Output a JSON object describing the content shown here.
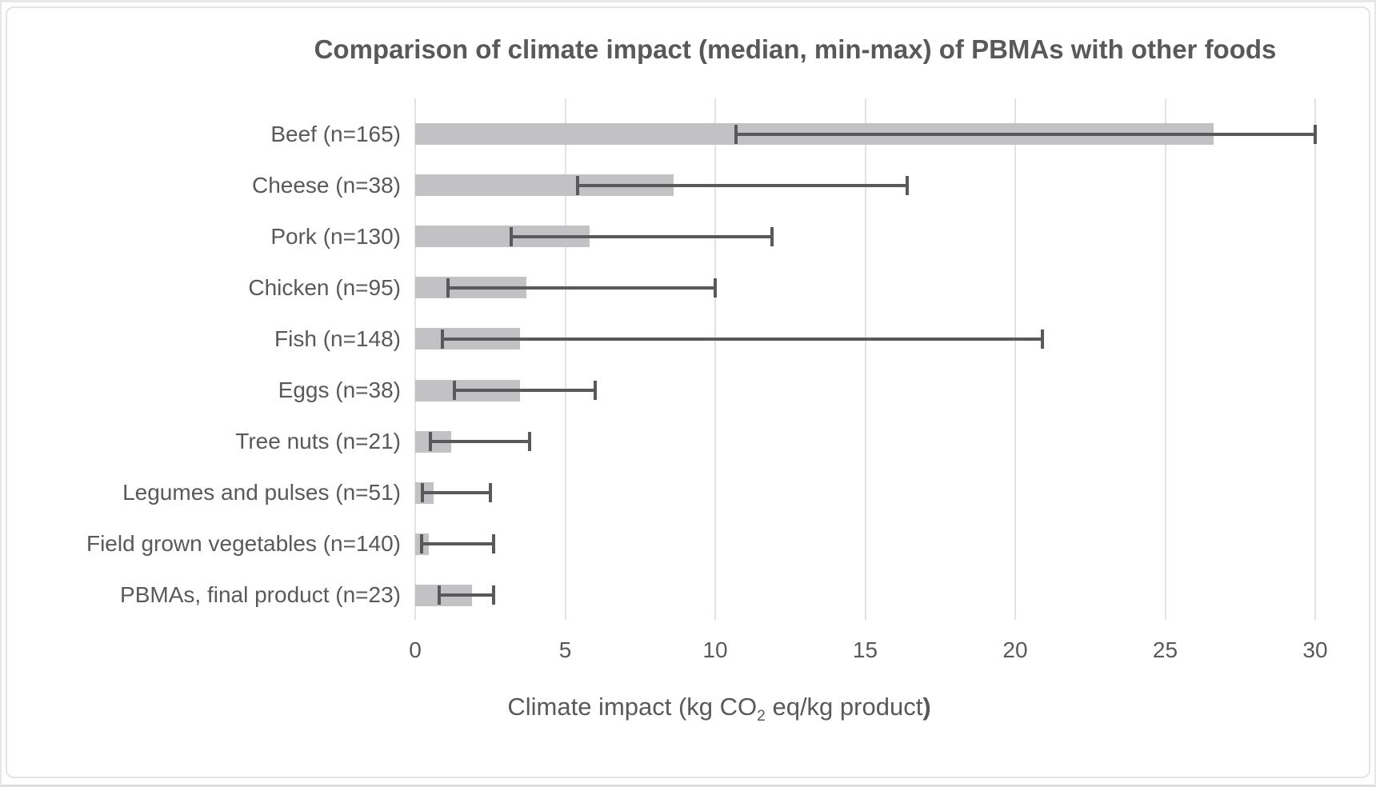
{
  "page": {
    "background": "#ffffff",
    "outer_border_color": "#e7e7e7",
    "frame_border_color": "#e3e3e3"
  },
  "chart_data": {
    "type": "bar",
    "orientation": "horizontal",
    "title": "Comparison of climate impact (median, min-max) of PBMAs with other foods",
    "xlabel": {
      "pre": "Climate impact (kg CO",
      "sub": "2",
      "post": " eq/kg product",
      "close": ")"
    },
    "xlim": [
      0,
      30
    ],
    "xticks": [
      "0",
      "5",
      "10",
      "15",
      "20",
      "25",
      "30"
    ],
    "grid": true,
    "legend": false,
    "categories": [
      "Beef (n=165)",
      "Cheese (n=38)",
      "Pork (n=130)",
      "Chicken (n=95)",
      "Fish (n=148)",
      "Eggs (n=38)",
      "Tree nuts (n=21)",
      "Legumes and pulses (n=51)",
      "Field grown vegetables (n=140)",
      "PBMAs, final product (n=23)"
    ],
    "series": [
      {
        "name": "median (bar)",
        "values": [
          26.6,
          8.6,
          5.8,
          3.7,
          3.5,
          3.5,
          1.2,
          0.6,
          0.45,
          1.9
        ]
      },
      {
        "name": "min (lower whisker)",
        "values": [
          10.7,
          5.4,
          3.2,
          1.1,
          0.9,
          1.3,
          0.5,
          0.25,
          0.2,
          0.8
        ]
      },
      {
        "name": "max (upper whisker)",
        "values": [
          30.0,
          16.4,
          11.9,
          10.0,
          20.9,
          6.0,
          3.8,
          2.5,
          2.6,
          2.6
        ]
      }
    ],
    "colors": {
      "bar": "#c2c2c4",
      "error_bar": "#595959",
      "gridline": "#e3e3e3",
      "text": "#595959"
    }
  }
}
